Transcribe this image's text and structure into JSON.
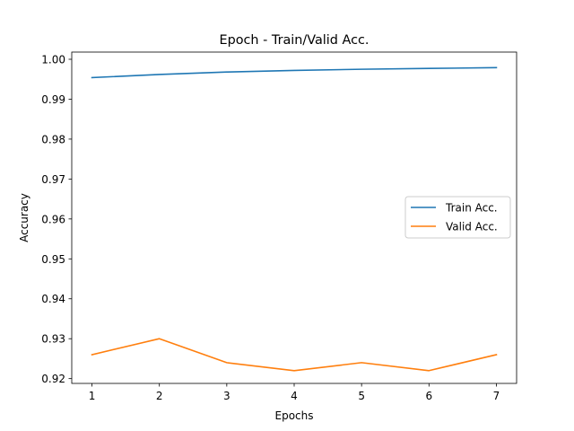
{
  "chart_data": {
    "type": "line",
    "title": "Epoch - Train/Valid Acc.",
    "xlabel": "Epochs",
    "ylabel": "Accuracy",
    "x": [
      1,
      2,
      3,
      4,
      5,
      6,
      7
    ],
    "xlim": [
      0.7,
      7.3
    ],
    "ylim": [
      0.9188,
      1.0018
    ],
    "xticks": [
      1,
      2,
      3,
      4,
      5,
      6,
      7
    ],
    "yticks": [
      0.92,
      0.93,
      0.94,
      0.95,
      0.96,
      0.97,
      0.98,
      0.99,
      1.0
    ],
    "ytick_labels": [
      "0.92",
      "0.93",
      "0.94",
      "0.95",
      "0.96",
      "0.97",
      "0.98",
      "0.99",
      "1.00"
    ],
    "grid": false,
    "legend_position": "center-right",
    "series": [
      {
        "name": "Train Acc.",
        "color": "#1f77b4",
        "values": [
          0.9954,
          0.9962,
          0.9968,
          0.9972,
          0.9975,
          0.9977,
          0.9979
        ]
      },
      {
        "name": "Valid Acc.",
        "color": "#ff7f0e",
        "values": [
          0.926,
          0.93,
          0.924,
          0.922,
          0.924,
          0.922,
          0.926
        ]
      }
    ]
  }
}
